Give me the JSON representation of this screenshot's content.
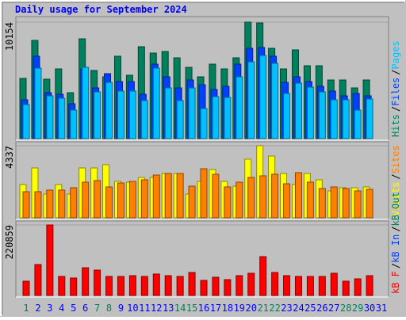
{
  "chart_data": [
    {
      "type": "bar",
      "title": "Daily usage for September 2024",
      "ylim": [
        0,
        10154
      ],
      "yticks": [
        10154
      ],
      "legend_separator": "/",
      "series": [
        {
          "name": "Hits",
          "color": "#00805c",
          "values": [
            5250,
            8565,
            5181,
            6079,
            4006,
            8703,
            5941,
            5388,
            7184,
            5526,
            8013,
            7460,
            7598,
            7046,
            6217,
            5388,
            6493,
            6079,
            7046,
            10154,
            10085,
            7875,
            6079,
            7737,
            6355,
            6355,
            5112,
            5112,
            4421,
            5112,
            0
          ]
        },
        {
          "name": "Files",
          "color": "#0040ff",
          "values": [
            3385,
            7184,
            4006,
            3868,
            3039,
            6079,
            4421,
            5664,
            4973,
            4973,
            3868,
            6493,
            5388,
            4421,
            5112,
            4697,
            4283,
            4559,
            6493,
            7875,
            7944,
            7184,
            4904,
            5388,
            4973,
            4559,
            4145,
            3730,
            3937,
            3730,
            0
          ]
        },
        {
          "name": "Pages",
          "color": "#00c0ff",
          "values": [
            2970,
            6148,
            3730,
            3523,
            2487,
            6217,
            4075,
            4904,
            4145,
            4145,
            3316,
            6148,
            4421,
            3316,
            4421,
            2625,
            3661,
            3592,
            5388,
            6700,
            7253,
            6562,
            3937,
            4835,
            4490,
            4075,
            3385,
            3385,
            2487,
            3454,
            0
          ]
        }
      ]
    },
    {
      "type": "bar",
      "ylim": [
        0,
        4337
      ],
      "yticks": [
        4337
      ],
      "legend_separator": "/",
      "series": [
        {
          "name": "Visits",
          "color": "#ffff00",
          "values": [
            2002,
            3003,
            1430,
            2002,
            1430,
            3003,
            3003,
            3193,
            2192,
            2145,
            2431,
            2431,
            2669,
            2669,
            1430,
            2192,
            2907,
            2192,
            1906,
            3527,
            4337,
            3717,
            2669,
            2002,
            2669,
            2288,
            1620,
            1811,
            1811,
            1859,
            0
          ]
        },
        {
          "name": "Sites",
          "color": "#ff8000",
          "values": [
            1573,
            1573,
            1668,
            1668,
            1811,
            2145,
            2240,
            1859,
            2097,
            2192,
            2288,
            2574,
            2669,
            2669,
            1906,
            2955,
            2621,
            1859,
            2145,
            2431,
            2526,
            2621,
            2049,
            2717,
            2145,
            1763,
            1859,
            1763,
            1620,
            1716,
            0
          ]
        }
      ]
    },
    {
      "type": "bar",
      "ylim": [
        0,
        220859
      ],
      "yticks": [
        220859
      ],
      "legend_separator": "/",
      "categories": [
        "1",
        "2",
        "3",
        "4",
        "5",
        "6",
        "7",
        "8",
        "9",
        "10",
        "11",
        "12",
        "13",
        "14",
        "15",
        "16",
        "17",
        "18",
        "19",
        "20",
        "21",
        "22",
        "23",
        "24",
        "25",
        "26",
        "27",
        "28",
        "29",
        "30",
        "31"
      ],
      "category_colors": [
        "#00805c",
        "#0000ff",
        "#0000ff",
        "#0000ff",
        "#0000ff",
        "#0000ff",
        "#00805c",
        "#00805c",
        "#0000ff",
        "#0000ff",
        "#0000ff",
        "#0000ff",
        "#0000ff",
        "#00805c",
        "#00805c",
        "#0000ff",
        "#0000ff",
        "#0000ff",
        "#0000ff",
        "#0000ff",
        "#00805c",
        "#00805c",
        "#0000ff",
        "#0000ff",
        "#0000ff",
        "#0000ff",
        "#0000ff",
        "#00805c",
        "#00805c",
        "#0000ff",
        "#0000ff"
      ],
      "series": [
        {
          "name": "kB F",
          "color": "#ff0000",
          "values": [
            44668,
            96779,
            220859,
            59557,
            54594,
            86853,
            79408,
            59557,
            59557,
            62039,
            59557,
            67002,
            62039,
            59557,
            71965,
            47149,
            57076,
            49631,
            62039,
            69484,
            121595,
            71965,
            62039,
            59557,
            59557,
            59557,
            69484,
            44668,
            52112,
            62039,
            0
          ]
        }
      ],
      "extra_legend": [
        {
          "name": "kB In",
          "color": "#0040ff"
        },
        {
          "name": "kB Out",
          "color": "#00805c"
        }
      ]
    }
  ]
}
